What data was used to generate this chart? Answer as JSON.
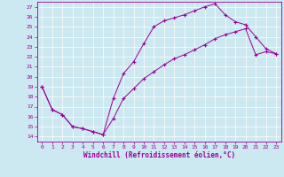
{
  "xlabel": "Windchill (Refroidissement éolien,°C)",
  "bg_color": "#cce8f0",
  "line_color": "#990099",
  "grid_color": "#ffffff",
  "marker": "+",
  "xlim": [
    -0.5,
    23.5
  ],
  "ylim": [
    13.5,
    27.5
  ],
  "xticks": [
    0,
    1,
    2,
    3,
    4,
    5,
    6,
    7,
    8,
    9,
    10,
    11,
    12,
    13,
    14,
    15,
    16,
    17,
    18,
    19,
    20,
    21,
    22,
    23
  ],
  "yticks": [
    14,
    15,
    16,
    17,
    18,
    19,
    20,
    21,
    22,
    23,
    24,
    25,
    26,
    27
  ],
  "series1_x": [
    0,
    1,
    2,
    3,
    4,
    5,
    6,
    7,
    8,
    9,
    10,
    11,
    12,
    13,
    14,
    15,
    16,
    17,
    18,
    19,
    20,
    21,
    22,
    23
  ],
  "series1_y": [
    19.0,
    16.7,
    16.2,
    15.0,
    14.8,
    14.5,
    14.2,
    17.8,
    20.3,
    21.5,
    23.3,
    25.0,
    25.6,
    25.9,
    26.2,
    26.6,
    27.0,
    27.3,
    26.2,
    25.5,
    25.2,
    24.0,
    22.8,
    22.3
  ],
  "series2_x": [
    0,
    1,
    2,
    3,
    4,
    5,
    6,
    7,
    8,
    9,
    10,
    11,
    12,
    13,
    14,
    15,
    16,
    17,
    18,
    19,
    20,
    21,
    22,
    23
  ],
  "series2_y": [
    19.0,
    16.7,
    16.2,
    15.0,
    14.8,
    14.5,
    14.2,
    15.8,
    17.8,
    18.8,
    19.8,
    20.5,
    21.2,
    21.8,
    22.2,
    22.7,
    23.2,
    23.8,
    24.2,
    24.5,
    24.8,
    22.2,
    22.5,
    22.3
  ]
}
